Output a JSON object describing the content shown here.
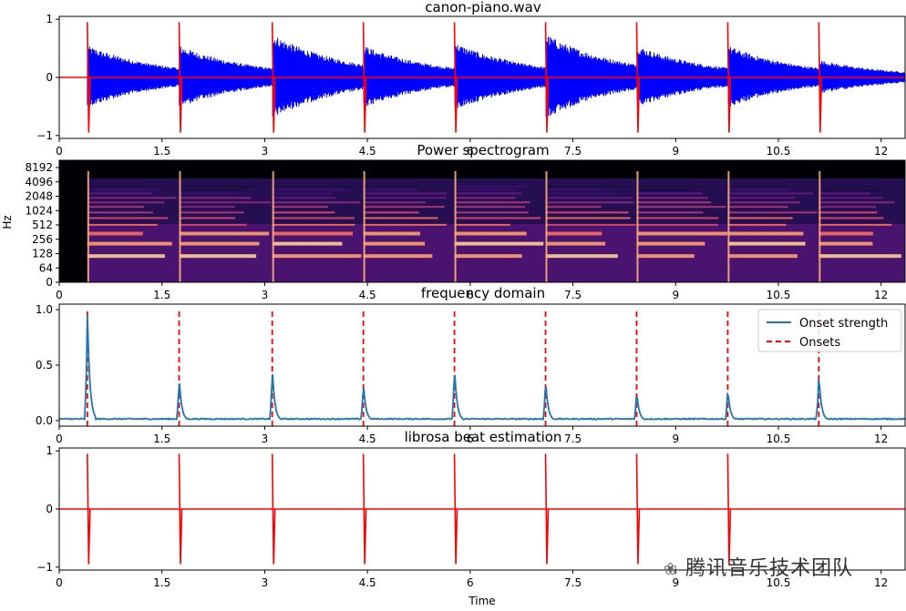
{
  "chart_data": [
    {
      "type": "line",
      "title": "canon-piano.wav",
      "x_ticks": [
        "0",
        "1.5",
        "3",
        "4.5",
        "6",
        "7.5",
        "9",
        "10.5",
        "12"
      ],
      "x_tick_values": [
        0,
        1.5,
        3,
        4.5,
        6,
        7.5,
        9,
        10.5,
        12
      ],
      "xlim": [
        0,
        12.35
      ],
      "y_ticks": [
        "1",
        "0",
        "−1"
      ],
      "y_tick_values": [
        1,
        0,
        -1
      ],
      "ylim": [
        -1.05,
        1.05
      ],
      "series": [
        {
          "name": "",
          "kind": "waveform",
          "color": "#0000ff",
          "envelope": {
            "onsets": [
              0.41,
              1.75,
              3.11,
              4.44,
              5.77,
              7.1,
              8.43,
              9.76,
              11.09
            ],
            "peak_amp": [
              0.55,
              0.55,
              0.75,
              0.55,
              0.6,
              0.75,
              0.55,
              0.55,
              0.3
            ]
          }
        },
        {
          "name": "",
          "kind": "clicks",
          "color": "#ff0000",
          "x": [
            0.41,
            1.75,
            3.11,
            4.44,
            5.77,
            7.1,
            8.43,
            9.76,
            11.09
          ]
        }
      ]
    },
    {
      "type": "heatmap",
      "title": "Power spectrogram",
      "ylabel": "Hz",
      "x_ticks": [
        "0",
        "1.5",
        "3",
        "4.5",
        "6",
        "7.5",
        "9",
        "10.5",
        "12"
      ],
      "x_tick_values": [
        0,
        1.5,
        3,
        4.5,
        6,
        7.5,
        9,
        10.5,
        12
      ],
      "xlim": [
        0,
        12.35
      ],
      "y_ticks": [
        "8192",
        "4096",
        "2048",
        "1024",
        "512",
        "256",
        "128",
        "64",
        "0"
      ],
      "y_scale": "log",
      "colormap": "magma",
      "onsets": [
        0.41,
        1.75,
        3.11,
        4.44,
        5.77,
        7.1,
        8.43,
        9.76,
        11.09
      ]
    },
    {
      "type": "line",
      "title": "frequency domain",
      "x_ticks": [
        "0",
        "1.5",
        "3",
        "4.5",
        "6",
        "7.5",
        "9",
        "10.5",
        "12"
      ],
      "x_tick_values": [
        0,
        1.5,
        3,
        4.5,
        6,
        7.5,
        9,
        10.5,
        12
      ],
      "xlim": [
        0,
        12.35
      ],
      "y_ticks": [
        "1.0",
        "0.5",
        "0.0"
      ],
      "y_tick_values": [
        1.0,
        0.5,
        0.0
      ],
      "ylim": [
        -0.05,
        1.05
      ],
      "legend": {
        "placement": "top-right",
        "entries": [
          "Onset strength",
          "Onsets"
        ]
      },
      "series": [
        {
          "name": "Onset strength",
          "color": "#1f77b4",
          "peaks_x": [
            0.41,
            1.75,
            3.11,
            4.44,
            5.77,
            7.1,
            8.43,
            9.76,
            11.09
          ],
          "peaks_y": [
            1.0,
            0.4,
            0.48,
            0.35,
            0.5,
            0.38,
            0.27,
            0.29,
            0.43
          ],
          "baseline": 0.01
        },
        {
          "name": "Onsets",
          "style": "dashed",
          "color": "#ff0000",
          "x": [
            0.41,
            1.75,
            3.11,
            4.44,
            5.77,
            7.1,
            8.43,
            9.76,
            11.09
          ]
        }
      ]
    },
    {
      "type": "line",
      "title": "librosa beat estimation",
      "xlabel": "Time",
      "x_ticks": [
        "0",
        "1.5",
        "3",
        "4.5",
        "6",
        "7.5",
        "9",
        "10.5",
        "12"
      ],
      "x_tick_values": [
        0,
        1.5,
        3,
        4.5,
        6,
        7.5,
        9,
        10.5,
        12
      ],
      "xlim": [
        0,
        12.35
      ],
      "y_ticks": [
        "1",
        "0",
        "−1"
      ],
      "y_tick_values": [
        1,
        0,
        -1
      ],
      "ylim": [
        -1.05,
        1.05
      ],
      "series": [
        {
          "name": "",
          "kind": "clicks",
          "color": "#ff0000",
          "x": [
            0.41,
            1.75,
            3.11,
            4.44,
            5.77,
            7.1,
            8.43,
            9.76
          ]
        }
      ]
    }
  ],
  "watermark": "腾讯音乐技术团队"
}
